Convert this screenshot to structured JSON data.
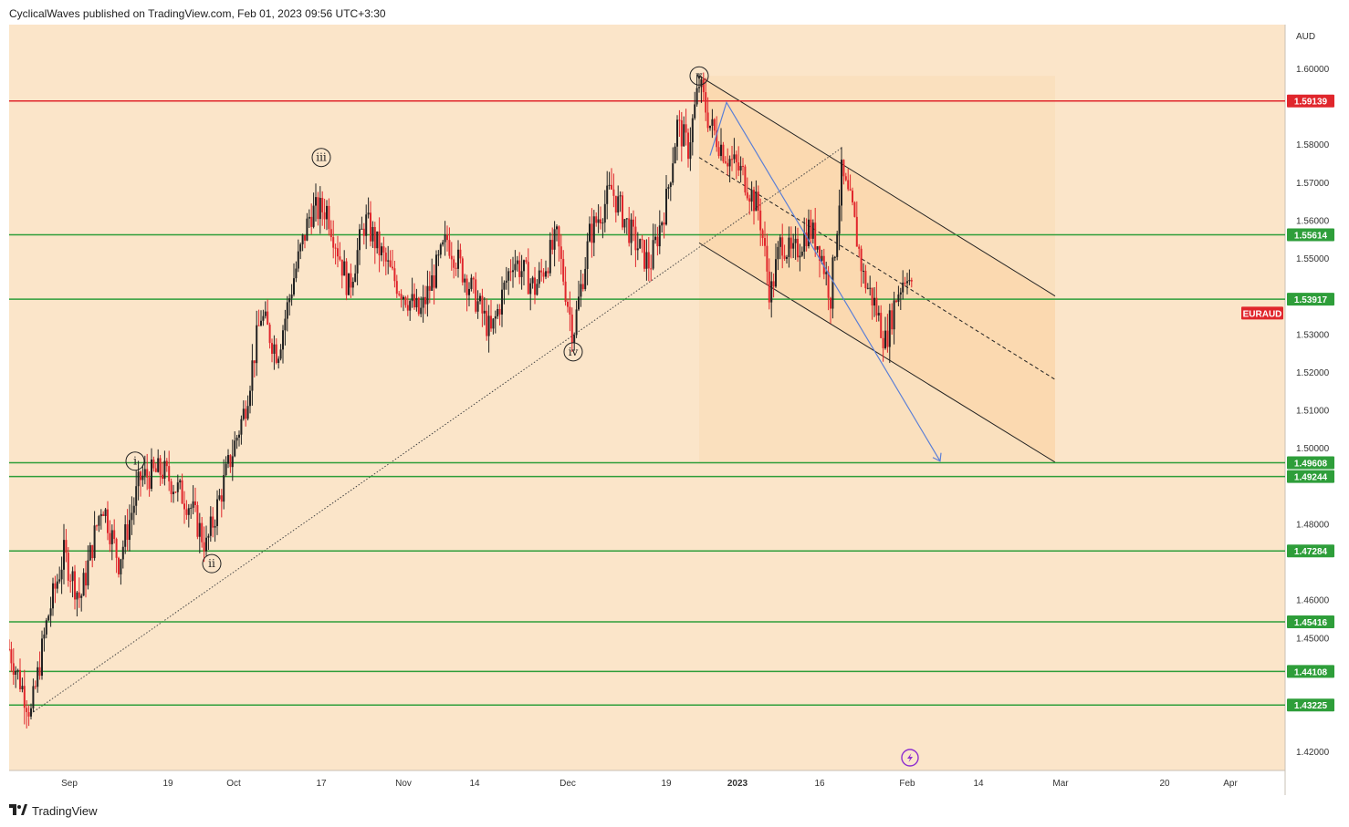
{
  "header": {
    "publish_text": "CyclicalWaves published on TradingView.com, Feb 01, 2023 09:56 UTC+3:30"
  },
  "footer": {
    "brand": "TradingView"
  },
  "colors": {
    "background": "#fbe5c9",
    "channel_fill": "#fbd9b0",
    "support_line": "#2e9e3a",
    "resistance_line": "#e0262c",
    "up_candle": "#222222",
    "down_candle": "#e0262c",
    "arrow": "#5b7fd6",
    "symbol_tag": "#e0262c"
  },
  "chart_data": {
    "type": "candlestick",
    "symbol": "EURAUD",
    "currency": "AUD",
    "ylim": [
      1.415,
      1.6115
    ],
    "y_ticks": [
      {
        "value": 1.6,
        "label": "1.60000"
      },
      {
        "value": 1.58,
        "label": "1.58000"
      },
      {
        "value": 1.57,
        "label": "1.57000"
      },
      {
        "value": 1.56,
        "label": "1.56000"
      },
      {
        "value": 1.55,
        "label": "1.55000"
      },
      {
        "value": 1.53,
        "label": "1.53000"
      },
      {
        "value": 1.52,
        "label": "1.52000"
      },
      {
        "value": 1.51,
        "label": "1.51000"
      },
      {
        "value": 1.5,
        "label": "1.50000"
      },
      {
        "value": 1.48,
        "label": "1.48000"
      },
      {
        "value": 1.46,
        "label": "1.46000"
      },
      {
        "value": 1.45,
        "label": "1.45000"
      },
      {
        "value": 1.42,
        "label": "1.42000"
      }
    ],
    "x_ticks": [
      {
        "label": "Sep",
        "day": 1,
        "bold": false
      },
      {
        "label": "19",
        "day": 19,
        "bold": false
      },
      {
        "label": "Oct",
        "day": 31,
        "bold": false
      },
      {
        "label": "17",
        "day": 47,
        "bold": false
      },
      {
        "label": "Nov",
        "day": 62,
        "bold": false
      },
      {
        "label": "14",
        "day": 75,
        "bold": false
      },
      {
        "label": "Dec",
        "day": 92,
        "bold": false
      },
      {
        "label": "19",
        "day": 110,
        "bold": false
      },
      {
        "label": "2023",
        "day": 123,
        "bold": true
      },
      {
        "label": "16",
        "day": 138,
        "bold": false
      },
      {
        "label": "Feb",
        "day": 154,
        "bold": false
      },
      {
        "label": "14",
        "day": 167,
        "bold": false
      },
      {
        "label": "Mar",
        "day": 182,
        "bold": false
      },
      {
        "label": "20",
        "day": 201,
        "bold": false
      },
      {
        "label": "Apr",
        "day": 213,
        "bold": false
      }
    ],
    "day_range": [
      -10,
      223
    ],
    "horizontal_levels": [
      {
        "value": 1.59139,
        "label": "1.59139",
        "kind": "resistance"
      },
      {
        "value": 1.55614,
        "label": "1.55614",
        "kind": "support"
      },
      {
        "value": 1.53917,
        "label": "1.53917",
        "kind": "support"
      },
      {
        "value": 1.49608,
        "label": "1.49608",
        "kind": "support"
      },
      {
        "value": 1.49244,
        "label": "1.49244",
        "kind": "support"
      },
      {
        "value": 1.47284,
        "label": "1.47284",
        "kind": "support"
      },
      {
        "value": 1.45416,
        "label": "1.45416",
        "kind": "support"
      },
      {
        "value": 1.44108,
        "label": "1.44108",
        "kind": "support"
      },
      {
        "value": 1.43225,
        "label": "1.43225",
        "kind": "support"
      }
    ],
    "symbol_tag": {
      "label": "EURAUD",
      "value": 1.5355
    },
    "wave_labels": [
      {
        "label": "i",
        "day": 13,
        "value": 1.4965
      },
      {
        "label": "ii",
        "day": 27,
        "value": 1.4695
      },
      {
        "label": "iii",
        "day": 47,
        "value": 1.5765
      },
      {
        "label": "iv",
        "day": 93,
        "value": 1.5253
      },
      {
        "label": "v",
        "day": 116,
        "value": 1.598
      }
    ],
    "price_path": [
      {
        "day": -10,
        "value": 1.447
      },
      {
        "day": -6,
        "value": 1.43
      },
      {
        "day": -3,
        "value": 1.455
      },
      {
        "day": 0,
        "value": 1.472
      },
      {
        "day": 3,
        "value": 1.46
      },
      {
        "day": 7,
        "value": 1.486
      },
      {
        "day": 10,
        "value": 1.47
      },
      {
        "day": 14,
        "value": 1.492
      },
      {
        "day": 18,
        "value": 1.494
      },
      {
        "day": 23,
        "value": 1.485
      },
      {
        "day": 26,
        "value": 1.474
      },
      {
        "day": 30,
        "value": 1.495
      },
      {
        "day": 33,
        "value": 1.51
      },
      {
        "day": 36,
        "value": 1.535
      },
      {
        "day": 39,
        "value": 1.525
      },
      {
        "day": 42,
        "value": 1.545
      },
      {
        "day": 45,
        "value": 1.562
      },
      {
        "day": 48,
        "value": 1.563
      },
      {
        "day": 52,
        "value": 1.542
      },
      {
        "day": 55,
        "value": 1.56
      },
      {
        "day": 60,
        "value": 1.545
      },
      {
        "day": 65,
        "value": 1.535
      },
      {
        "day": 70,
        "value": 1.555
      },
      {
        "day": 75,
        "value": 1.54
      },
      {
        "day": 78,
        "value": 1.53
      },
      {
        "day": 82,
        "value": 1.55
      },
      {
        "day": 86,
        "value": 1.542
      },
      {
        "day": 90,
        "value": 1.555
      },
      {
        "day": 93,
        "value": 1.53
      },
      {
        "day": 96,
        "value": 1.556
      },
      {
        "day": 100,
        "value": 1.568
      },
      {
        "day": 104,
        "value": 1.555
      },
      {
        "day": 107,
        "value": 1.548
      },
      {
        "day": 110,
        "value": 1.565
      },
      {
        "day": 112,
        "value": 1.585
      },
      {
        "day": 114,
        "value": 1.579
      },
      {
        "day": 116,
        "value": 1.596
      },
      {
        "day": 118,
        "value": 1.585
      },
      {
        "day": 121,
        "value": 1.577
      },
      {
        "day": 124,
        "value": 1.572
      },
      {
        "day": 127,
        "value": 1.562
      },
      {
        "day": 129,
        "value": 1.54
      },
      {
        "day": 131,
        "value": 1.555
      },
      {
        "day": 133,
        "value": 1.55
      },
      {
        "day": 136,
        "value": 1.558
      },
      {
        "day": 138,
        "value": 1.553
      },
      {
        "day": 140,
        "value": 1.54
      },
      {
        "day": 142,
        "value": 1.572
      },
      {
        "day": 144,
        "value": 1.562
      },
      {
        "day": 146,
        "value": 1.545
      },
      {
        "day": 148,
        "value": 1.538
      },
      {
        "day": 150,
        "value": 1.528
      },
      {
        "day": 152,
        "value": 1.54
      },
      {
        "day": 154,
        "value": 1.547
      },
      {
        "day": 155,
        "value": 1.54
      }
    ]
  }
}
